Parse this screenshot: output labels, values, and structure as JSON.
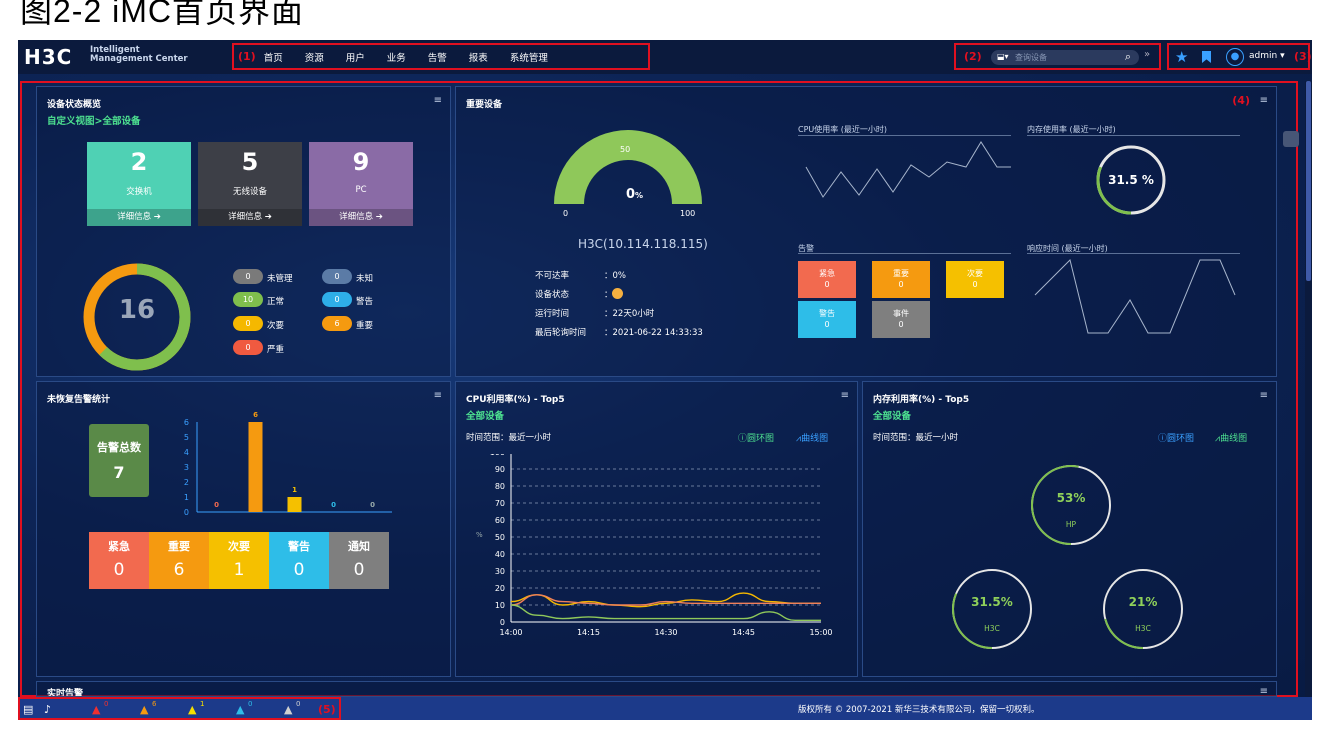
{
  "figure_caption": "图2-2 iMC首页界面",
  "logo": {
    "brand": "H3C",
    "line1": "Intelligent",
    "line2": "Management Center"
  },
  "nav": {
    "tag": "(1)",
    "items": [
      "首页",
      "资源",
      "用户",
      "业务",
      "告警",
      "报表",
      "系统管理"
    ]
  },
  "search": {
    "tag": "(2)",
    "placeholder": "查询设备"
  },
  "user": {
    "tag": "(3)",
    "name": "admin"
  },
  "region_tags": {
    "main": "(4)",
    "status": "(5)"
  },
  "device_overview": {
    "title": "设备状态概览",
    "subtitle": "自定义视图>全部设备",
    "tiles": [
      {
        "count": "2",
        "label": "交换机",
        "detail": "详细信息",
        "color": "#4fd1b4"
      },
      {
        "count": "5",
        "label": "无线设备",
        "detail": "详细信息",
        "color": "#3d3f47"
      },
      {
        "count": "9",
        "label": "PC",
        "detail": "详细信息",
        "color": "#8a6ba6"
      }
    ],
    "total": "16",
    "states": [
      {
        "value": "0",
        "label": "未管理",
        "color": "#7a7a7a"
      },
      {
        "value": "0",
        "label": "未知",
        "color": "#5b7ba6"
      },
      {
        "value": "10",
        "label": "正常",
        "color": "#7fbf4d"
      },
      {
        "value": "0",
        "label": "警告",
        "color": "#2eaee8"
      },
      {
        "value": "0",
        "label": "次要",
        "color": "#f5b800"
      },
      {
        "value": "6",
        "label": "重要",
        "color": "#f59a10"
      },
      {
        "value": "0",
        "label": "严重",
        "color": "#f05a40"
      }
    ]
  },
  "key_device": {
    "title": "重要设备",
    "gauge": {
      "value": "0",
      "unit": "%",
      "min": "0",
      "mid": "50",
      "max": "100"
    },
    "name": "H3C(10.114.118.115)",
    "info": [
      {
        "k": "不可达率",
        "v": "：0%"
      },
      {
        "k": "设备状态",
        "v": "："
      },
      {
        "k": "运行时间",
        "v": "：22天0小时"
      },
      {
        "k": "最后轮询时间",
        "v": "：2021-06-22 14:33:33"
      }
    ],
    "cpu_title": "CPU使用率 (最近一小时)",
    "mem_title": "内存使用率 (最近一小时)",
    "mem_value": "31.5 %",
    "alarm_title": "告警",
    "alarms": [
      {
        "label": "紧急",
        "value": "0",
        "color": "#f26a4f"
      },
      {
        "label": "重要",
        "value": "0",
        "color": "#f59a10"
      },
      {
        "label": "次要",
        "value": "0",
        "color": "#f5c000"
      },
      {
        "label": "警告",
        "value": "0",
        "color": "#2ebde8"
      },
      {
        "label": "事件",
        "value": "0",
        "color": "#7f7f7f"
      }
    ],
    "resp_title": "响应时间 (最近一小时)"
  },
  "unresolved_alarms": {
    "title": "未恢复告警统计",
    "total_label": "告警总数",
    "total": "7",
    "bar_values": [
      "0",
      "6",
      "1",
      "0",
      "0"
    ],
    "y_ticks": [
      "6",
      "5",
      "4",
      "3",
      "2",
      "1",
      "0"
    ],
    "cells": [
      {
        "label": "紧急",
        "value": "0",
        "color": "#f26a4f"
      },
      {
        "label": "重要",
        "value": "6",
        "color": "#f59a10"
      },
      {
        "label": "次要",
        "value": "1",
        "color": "#f5c000"
      },
      {
        "label": "警告",
        "value": "0",
        "color": "#2ebde8"
      },
      {
        "label": "通知",
        "value": "0",
        "color": "#7f7f7f"
      }
    ]
  },
  "cpu_top5": {
    "title": "CPU利用率(%) - Top5",
    "subtitle": "全部设备",
    "time_range": "时间范围：最近一小时",
    "opt_ring": "圆环图",
    "opt_curve": "曲线图",
    "y_ticks": [
      "100",
      "90",
      "80",
      "70",
      "60",
      "50",
      "40",
      "30",
      "20",
      "10",
      "0"
    ],
    "x_ticks": [
      "14:00",
      "14:15",
      "14:30",
      "14:45",
      "15:00"
    ],
    "yunit": "%"
  },
  "mem_top5": {
    "title": "内存利用率(%) - Top5",
    "subtitle": "全部设备",
    "time_range": "时间范围：最近一小时",
    "opt_ring": "圆环图",
    "opt_curve": "曲线图",
    "rings": [
      {
        "value": "53%",
        "name": "HP"
      },
      {
        "value": "31.5%",
        "name": "H3C"
      },
      {
        "value": "21%",
        "name": "H3C"
      }
    ]
  },
  "realtime": {
    "title": "实时告警"
  },
  "statusbar": {
    "counts": [
      {
        "value": "0",
        "color": "#f03030"
      },
      {
        "value": "6",
        "color": "#f59a10"
      },
      {
        "value": "1",
        "color": "#f5e000"
      },
      {
        "value": "0",
        "color": "#2ebde8"
      },
      {
        "value": "0",
        "color": "#d0d0d0"
      }
    ],
    "copyright": "版权所有 © 2007-2021 新华三技术有限公司，保留一切权利。"
  },
  "chart_data": [
    {
      "type": "bar",
      "title": "未恢复告警统计",
      "categories": [
        "紧急",
        "重要",
        "次要",
        "警告",
        "通知"
      ],
      "values": [
        0,
        6,
        1,
        0,
        0
      ],
      "ylim": [
        0,
        6
      ]
    },
    {
      "type": "line",
      "title": "CPU利用率(%) - Top5",
      "x": [
        "14:00",
        "14:05",
        "14:10",
        "14:15",
        "14:20",
        "14:25",
        "14:30",
        "14:35",
        "14:40",
        "14:45",
        "14:50",
        "14:55",
        "15:00"
      ],
      "ylabel": "%",
      "ylim": [
        0,
        100
      ],
      "series": [
        {
          "values": [
            12,
            16,
            10,
            12,
            10,
            9,
            11,
            13,
            12,
            17,
            12,
            11,
            11
          ],
          "color": "#f5b800"
        },
        {
          "values": [
            10,
            16,
            12,
            11,
            10,
            10,
            12,
            11,
            11,
            11,
            11,
            11,
            11
          ],
          "color": "#f0805a"
        },
        {
          "values": [
            10,
            4,
            2,
            3,
            2,
            2,
            2,
            2,
            2,
            2,
            6,
            1,
            1
          ],
          "color": "#8fc85a"
        }
      ]
    }
  ]
}
